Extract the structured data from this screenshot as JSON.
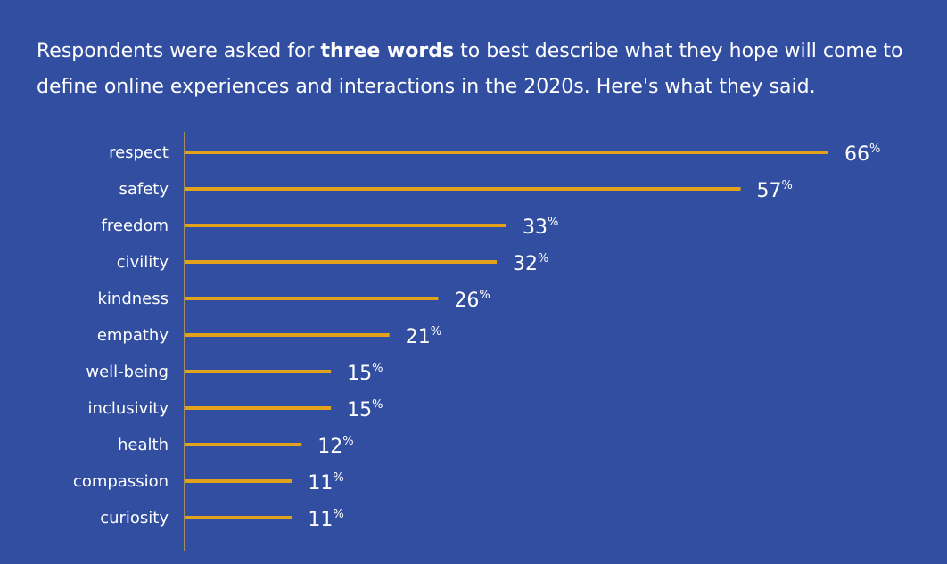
{
  "intro": {
    "before": "Respondents were asked for ",
    "bold": "three words",
    "after": " to best describe what they hope will come to define online experiences and interactions in the 2020s. Here's what they said."
  },
  "colors": {
    "background": "#324ea1",
    "bar": "#e2a21b",
    "axis": "#c9a24a",
    "text": "#ffffff"
  },
  "chart_data": {
    "type": "bar",
    "orientation": "horizontal",
    "categories": [
      "respect",
      "safety",
      "freedom",
      "civility",
      "kindness",
      "empathy",
      "well-being",
      "inclusivity",
      "health",
      "compassion",
      "curiosity"
    ],
    "values": [
      66,
      57,
      33,
      32,
      26,
      21,
      15,
      15,
      12,
      11,
      11
    ],
    "value_suffix": "%",
    "xlim": [
      0,
      66
    ],
    "grid": false
  }
}
